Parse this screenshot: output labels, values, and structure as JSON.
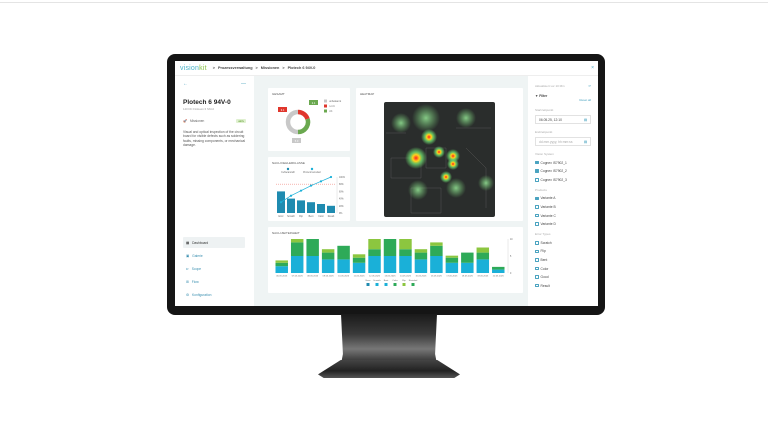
{
  "header": {
    "logo_a": "vision",
    "logo_b": "kit",
    "breadcrumb": [
      "Prozessverwaltung",
      "Missionen",
      "Plotech 6 94V-0"
    ],
    "sep": ">"
  },
  "sidebar": {
    "back": "←",
    "menu": "—",
    "title": "Plotech 6 94V-0",
    "subtitle": "140 DC Finkuein 6 SNI-0",
    "mission_label": "Missionen",
    "badge": "aktiv",
    "description": "Visual and optical inspection of the circuit board for visible defects such as soldering faults, missing components, or mechanical damage.",
    "nav": [
      {
        "label": "Dashboard",
        "icon": "dashboard-icon"
      },
      {
        "label": "Galerie",
        "icon": "gallery-icon"
      },
      {
        "label": "Scope",
        "icon": "scope-icon"
      },
      {
        "label": "Flow",
        "icon": "flow-icon"
      },
      {
        "label": "Konfiguration",
        "icon": "gear-icon"
      }
    ]
  },
  "cards": {
    "gesamt": "GESAMT",
    "heatmap": "HEATMAP",
    "pareto": "NACH FEHLERKLASSE",
    "time": "NACH ZEITEINHEIT"
  },
  "right": {
    "note": "Aktualisiert vor 10 Min",
    "filter": "Filter",
    "reset": "Reset all",
    "start_label": "Startzeitpunkt",
    "start_value": "06.05.25, 12:10",
    "end_label": "Endzeitpunkt",
    "end_placeholder": "dd.mm.yyyy, hh:mm:ss",
    "cam_label": "Vision System",
    "cams": [
      {
        "label": "Cognex IS7902_1",
        "checked": true
      },
      {
        "label": "Cognex IS7902_2",
        "checked": true
      },
      {
        "label": "Cognex IS7902_3",
        "checked": false
      }
    ],
    "prod_label": "Products",
    "prods": [
      {
        "label": "Variante A",
        "checked": true
      },
      {
        "label": "Variante B",
        "checked": false
      },
      {
        "label": "Variante C",
        "checked": false
      },
      {
        "label": "Variante D",
        "checked": false
      }
    ],
    "err_label": "Error Types",
    "errs": [
      {
        "label": "Scratch",
        "checked": false
      },
      {
        "label": "Flip",
        "checked": false
      },
      {
        "label": "Bent",
        "checked": false
      },
      {
        "label": "Color",
        "checked": false
      },
      {
        "label": "Good",
        "checked": false
      },
      {
        "label": "Result",
        "checked": false
      }
    ]
  },
  "colors": {
    "accent": "#4aa3c0",
    "ok": "#6aa84f",
    "nok": "#e0362c",
    "unknown": "#c8c8c8",
    "blue": "#1ab0d8",
    "green": "#2eaa58",
    "lightgreen": "#8cc63f"
  },
  "chart_data": [
    {
      "type": "pie",
      "title": "GESAMT",
      "labels": [
        "unbekannt",
        "n.i.O.",
        "i.O."
      ],
      "values": [
        50,
        20,
        30
      ],
      "callouts": [
        "2.1",
        "3.1",
        "5.0"
      ]
    },
    {
      "type": "bar",
      "title": "NACH FEHLERKLASSE",
      "categories": [
        "Error",
        "Scratch",
        "Flip",
        "Bent",
        "Color",
        "Result"
      ],
      "values": [
        6,
        4,
        3.5,
        3,
        2.5,
        2
      ],
      "line_series": {
        "values": [
          30,
          48,
          62,
          76,
          88,
          100
        ]
      },
      "legend": [
        "Fehleranzahl",
        "Prozent kumuliert"
      ],
      "y2_ticks": [
        "100%",
        "80%",
        "60%",
        "40%",
        "20%",
        "0%"
      ],
      "threshold": 80
    },
    {
      "type": "bar",
      "stacked": true,
      "title": "NACH ZEITEINHEIT",
      "categories": [
        "06.05.2025",
        "07.05.2025",
        "08.05.2025",
        "09.05.2025",
        "10.05.2025",
        "11.05.2025",
        "12.05.2025",
        "13.05.2025",
        "14.05.2025",
        "15.05.2025",
        "16.05.2025",
        "17.05.2025",
        "18.05.2025",
        "19.05.2025",
        "20.05.2025"
      ],
      "series": [
        {
          "name": "Scratch",
          "values": [
            2,
            5,
            5,
            4,
            4,
            3,
            5,
            5,
            5,
            4,
            5,
            3,
            3,
            4,
            1
          ]
        },
        {
          "name": "Color",
          "values": [
            1,
            4,
            5,
            2,
            4,
            1.5,
            2,
            5,
            2,
            2,
            3,
            1.5,
            3,
            2,
            0.8
          ]
        },
        {
          "name": "Flip",
          "values": [
            0.7,
            1,
            0,
            1,
            0,
            1,
            3,
            0,
            3,
            1,
            1,
            0.6,
            0,
            1.5,
            0
          ]
        }
      ],
      "legend": [
        "Error",
        "Scratch",
        "Bent",
        "Color",
        "Flip",
        "Residual"
      ],
      "ylim": [
        0,
        10
      ],
      "y_ticks": [
        "10",
        "5",
        "0"
      ]
    }
  ]
}
